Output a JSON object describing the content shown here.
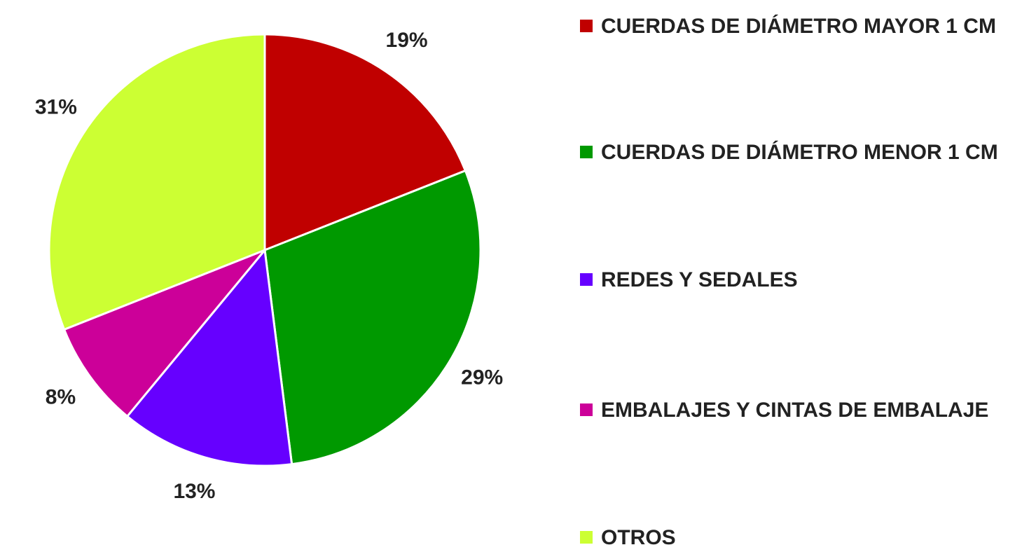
{
  "chart_data": {
    "type": "pie",
    "categories": [
      "CUERDAS DE DIÁMETRO MAYOR 1 CM",
      "CUERDAS DE DIÁMETRO MENOR 1 CM",
      "REDES Y SEDALES",
      "EMBALAJES Y CINTAS DE EMBALAJE",
      "OTROS"
    ],
    "values": [
      19,
      29,
      13,
      8,
      31
    ],
    "value_labels": [
      "19%",
      "29%",
      "13%",
      "8%",
      "31%"
    ],
    "colors": [
      "#c00000",
      "#009900",
      "#6600ff",
      "#cc0099",
      "#ccff33"
    ],
    "legend": "right"
  }
}
